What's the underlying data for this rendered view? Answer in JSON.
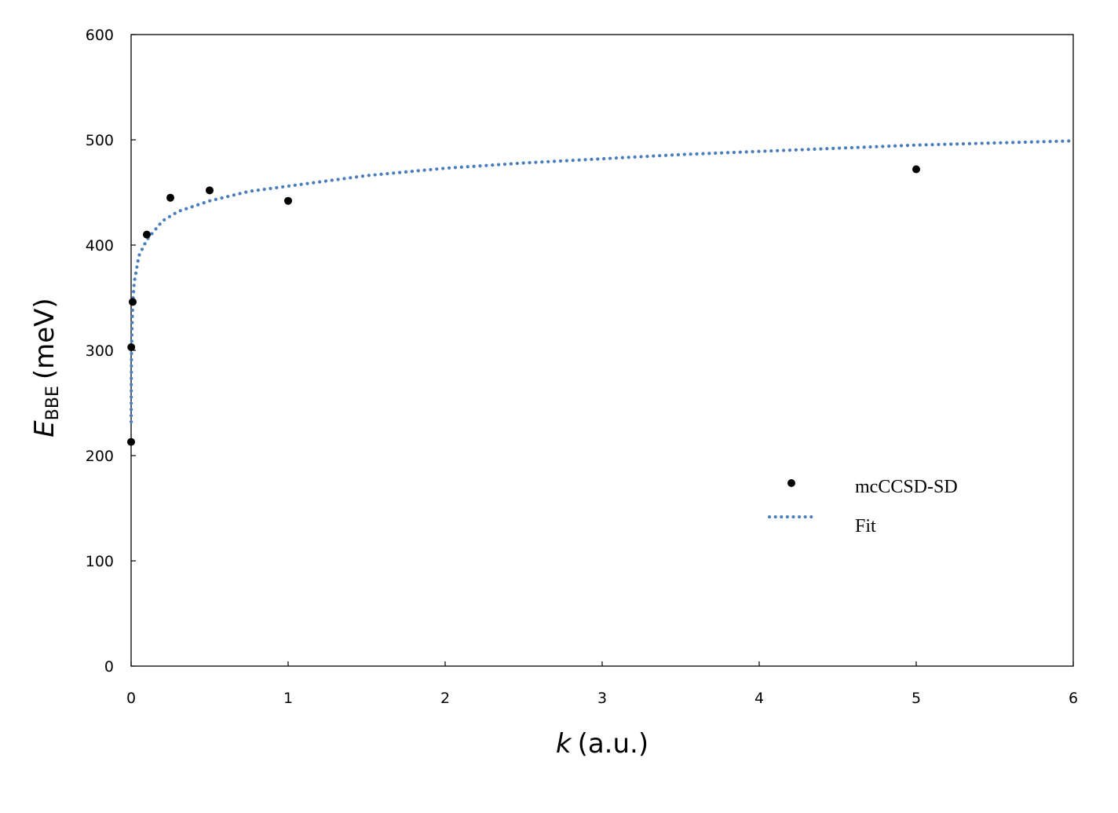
{
  "chart_data": {
    "type": "scatter",
    "xlim": [
      0,
      6
    ],
    "ylim": [
      0,
      600
    ],
    "x_ticks": [
      "0",
      "1",
      "2",
      "3",
      "4",
      "5",
      "6"
    ],
    "y_ticks": [
      "0",
      "100",
      "200",
      "300",
      "400",
      "500",
      "600"
    ],
    "xlabel": {
      "symbol": "k",
      "unit": "(a.u.)"
    },
    "ylabel": {
      "symbol": "E",
      "subscript": "BBE",
      "unit": "(meV)"
    },
    "grid": false,
    "legend_position": "center-right",
    "series": [
      {
        "name": "mcCCSD-SD",
        "style": "markers",
        "color": "#000000",
        "points": [
          [
            0.0,
            213
          ],
          [
            0.001,
            303
          ],
          [
            0.01,
            346
          ],
          [
            0.1,
            410
          ],
          [
            0.25,
            445
          ],
          [
            0.5,
            452
          ],
          [
            1.0,
            442
          ],
          [
            5.0,
            472
          ]
        ]
      },
      {
        "name": "Fit",
        "style": "dotted-line",
        "color": "#4a7ebb",
        "points": [
          [
            0.0003,
            232
          ],
          [
            0.001,
            270
          ],
          [
            0.003,
            305
          ],
          [
            0.01,
            345
          ],
          [
            0.02,
            365
          ],
          [
            0.05,
            390
          ],
          [
            0.1,
            405
          ],
          [
            0.2,
            423
          ],
          [
            0.3,
            432
          ],
          [
            0.5,
            442
          ],
          [
            0.75,
            451
          ],
          [
            1.0,
            456
          ],
          [
            1.5,
            466
          ],
          [
            2.0,
            473
          ],
          [
            2.5,
            478
          ],
          [
            3.0,
            482
          ],
          [
            3.5,
            486
          ],
          [
            4.0,
            489
          ],
          [
            4.5,
            492
          ],
          [
            5.0,
            495
          ],
          [
            5.5,
            497
          ],
          [
            6.0,
            499
          ]
        ]
      }
    ]
  }
}
